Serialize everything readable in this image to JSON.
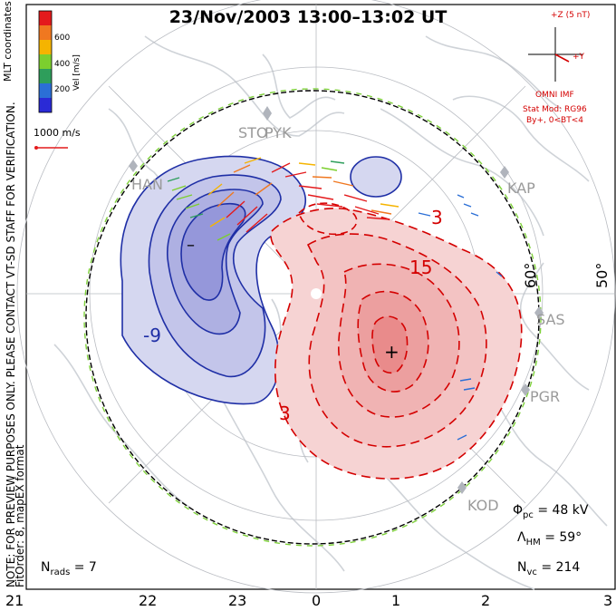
{
  "title": "23/Nov/2003 13:00–13:02 UT",
  "colorbar": {
    "label": "Vel [m/s]",
    "ticks": [
      "600",
      "400",
      "200"
    ],
    "colors": [
      "#e41a1c",
      "#f07820",
      "#f5b400",
      "#7ccf2e",
      "#2e9e5b",
      "#2b6fd6",
      "#2a2ad6"
    ]
  },
  "left_note": {
    "line1": "MLT coordinates",
    "line2": "NOTE: FOR PREVIEW PURPOSES ONLY. PLEASE CONTACT VT-SD STAFF FOR VERIFICATION.",
    "line3": "FitOrder: 8, mapEX format"
  },
  "scale_vector": "1000 m/s",
  "imf": {
    "z_label": "+Z (5 nT)",
    "y_label": "+Y",
    "source": "OMNI IMF",
    "model": "Stat Mod: RG96",
    "condition": "By+, 0<BT<4"
  },
  "stations": [
    "STO",
    "PYK",
    "HAN",
    "KAP",
    "SAS",
    "PGR",
    "KOD"
  ],
  "latitudes": [
    "60°",
    "50°"
  ],
  "contours": {
    "neg_min_marker": "–",
    "pos_max_marker": "+",
    "labels": [
      "-9",
      "15",
      "3",
      "3"
    ]
  },
  "stats": {
    "phi_pc": "= 48 kV",
    "lambda_hm": "= 59°",
    "n_vc": "= 214",
    "n_rads": "= 7"
  },
  "mlt_hours": [
    "21",
    "22",
    "23",
    "0",
    "1",
    "2",
    "3"
  ],
  "colors": {
    "neg_fill": "#c7c9ec",
    "neg_line": "#1f2fa6",
    "pos_fill": "#f4c5c5",
    "pos_line": "#d40000",
    "coast": "#cfd3d8",
    "hmb": "#7fd13b"
  }
}
